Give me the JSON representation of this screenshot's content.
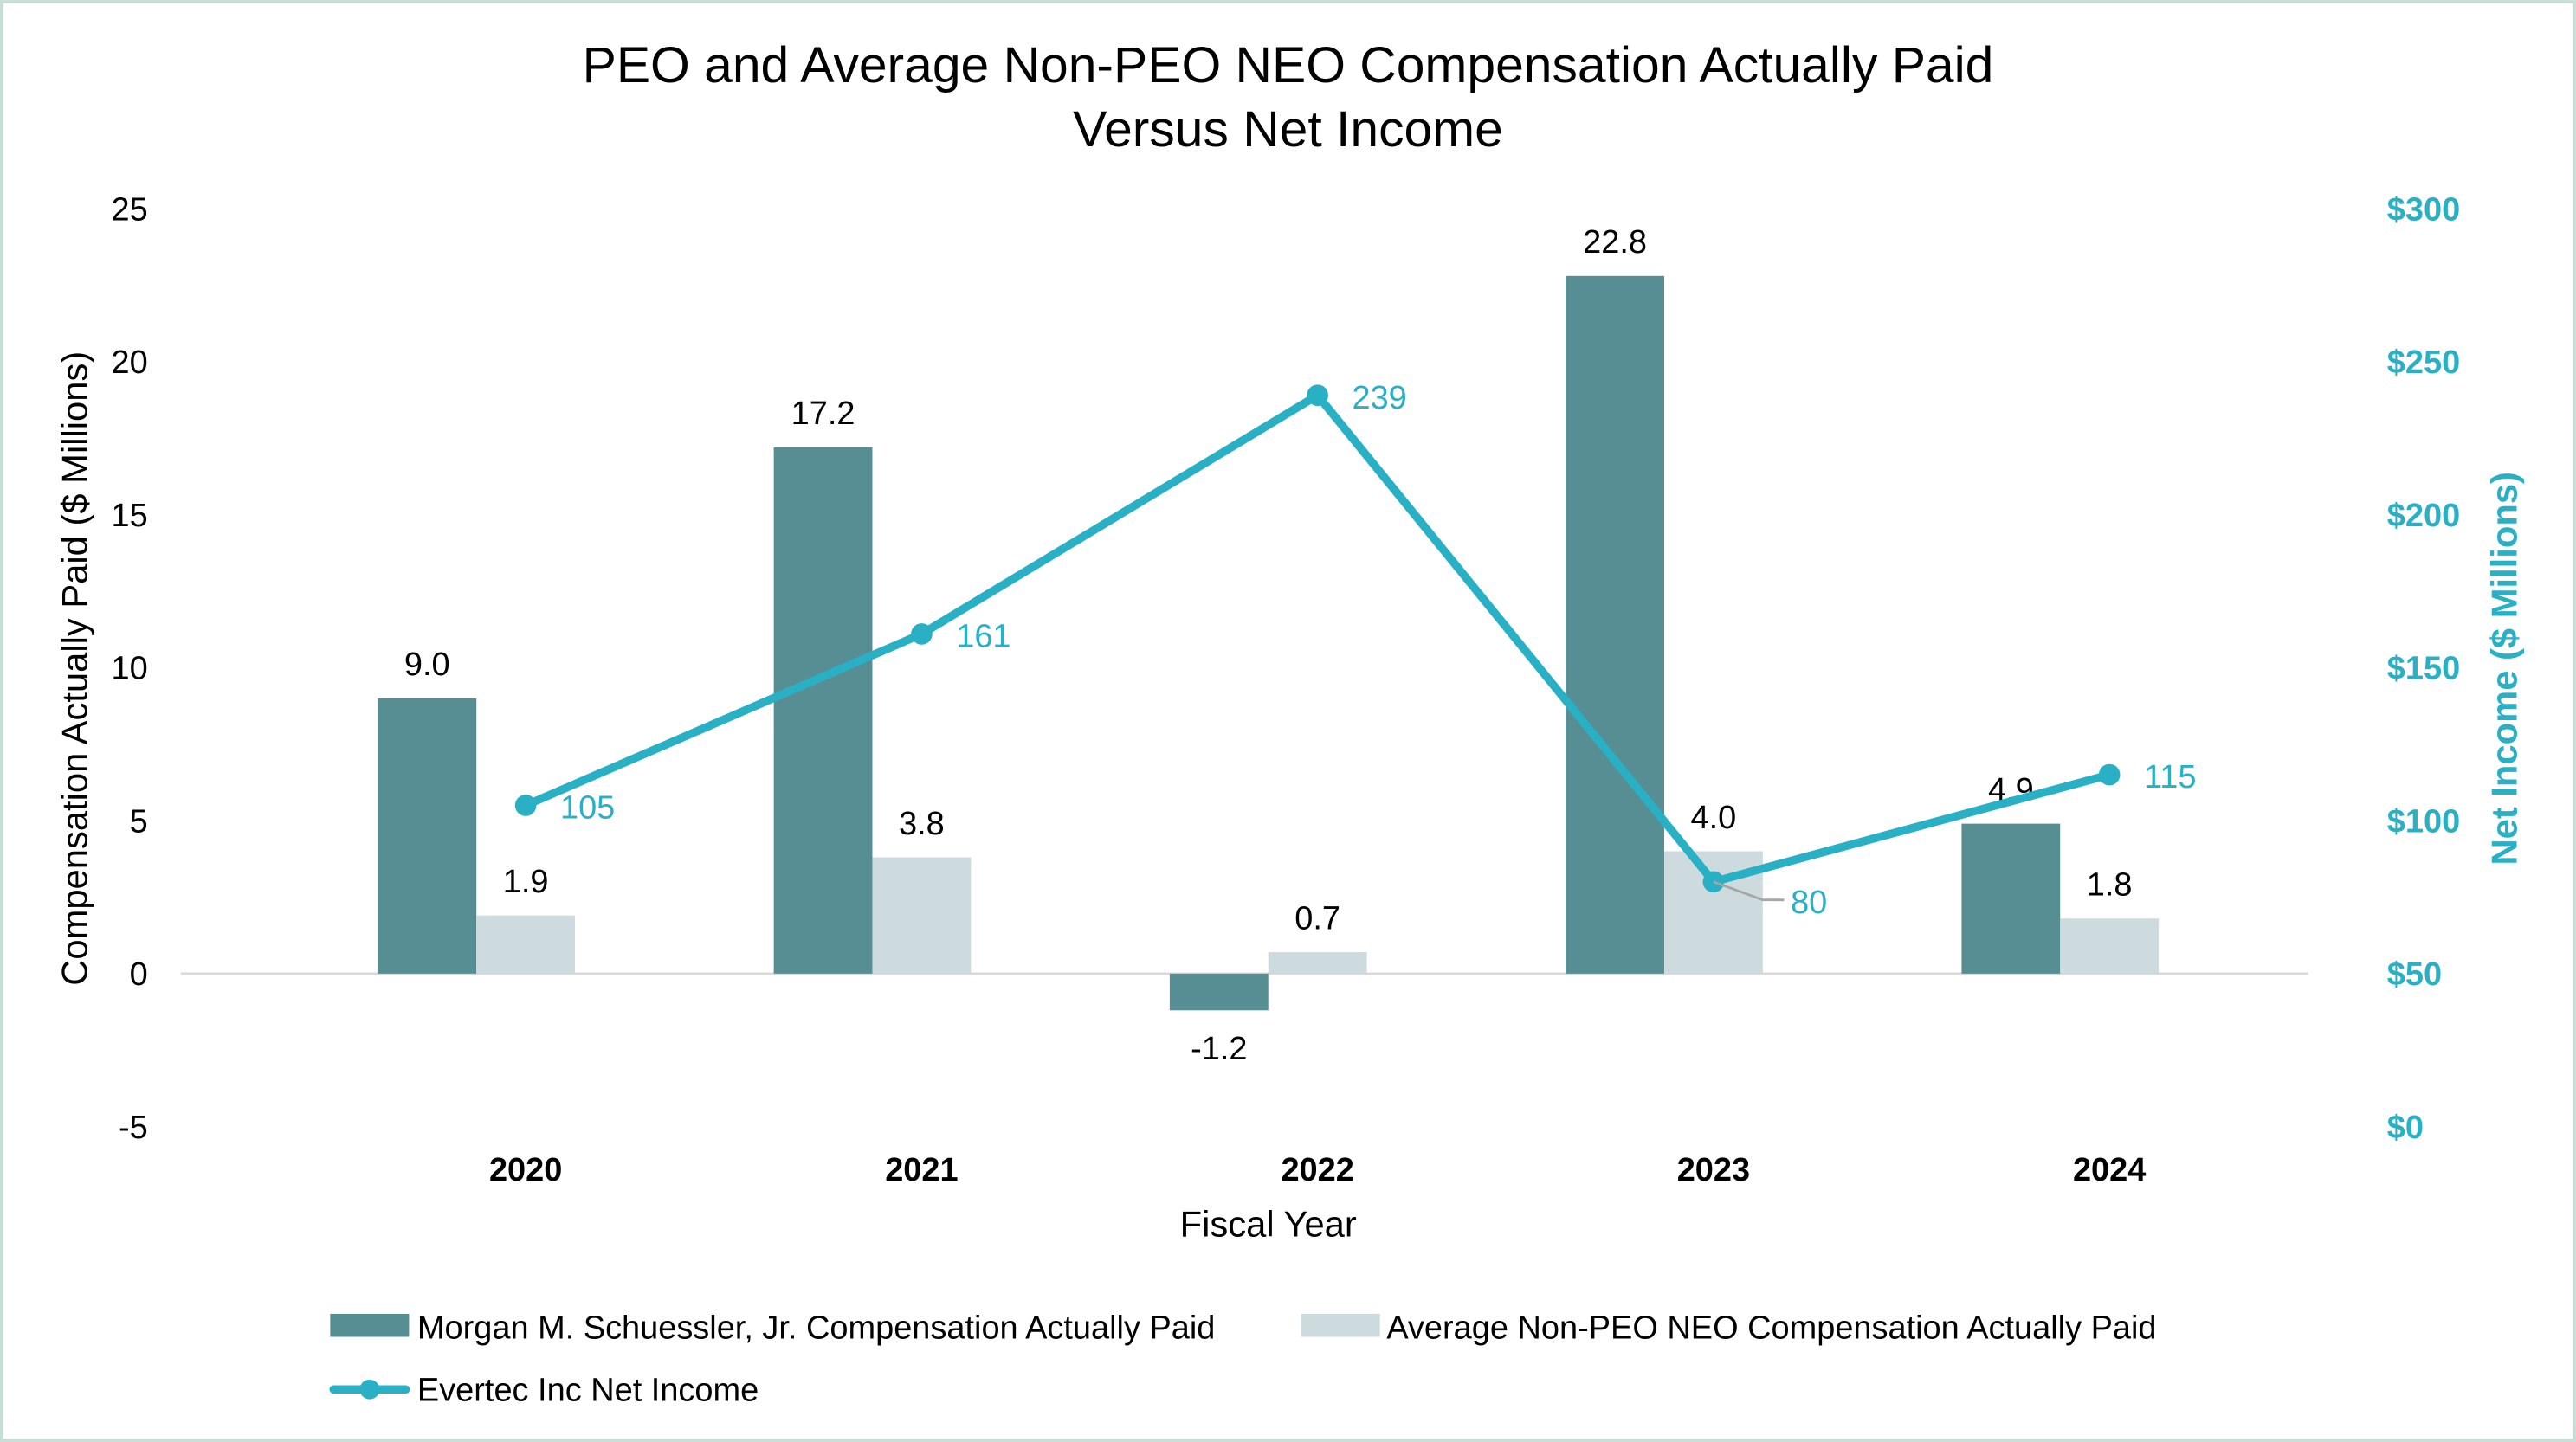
{
  "chart_data": {
    "type": "bar+line",
    "title": "PEO and Average Non-PEO NEO Compensation Actually Paid",
    "subtitle": "Versus Net Income",
    "xlabel": "Fiscal Year",
    "ylabel": "Compensation Actually Paid ($ Millions)",
    "y2label": "Net Income ($ Millions)",
    "categories": [
      "2020",
      "2021",
      "2022",
      "2023",
      "2024"
    ],
    "ylim": [
      -5,
      25
    ],
    "yticks": [
      "-5",
      "0",
      "5",
      "10",
      "15",
      "20",
      "25"
    ],
    "y2lim": [
      0,
      300
    ],
    "y2ticks": [
      "$0",
      "$50",
      "$100",
      "$150",
      "$200",
      "$250",
      "$300"
    ],
    "grid": false,
    "legend_position": "bottom",
    "series": [
      {
        "name": "Morgan M. Schuessler, Jr. Compensation Actually Paid",
        "type": "bar",
        "axis": "left",
        "color": "#568E94",
        "values": [
          9.0,
          17.2,
          -1.2,
          22.8,
          4.9
        ],
        "labels": [
          "9.0",
          "17.2",
          "-1.2",
          "22.8",
          "4.9"
        ]
      },
      {
        "name": "Average Non-PEO NEO Compensation Actually Paid",
        "type": "bar",
        "axis": "left",
        "color": "#CDDADE",
        "values": [
          1.9,
          3.8,
          0.7,
          4.0,
          1.8
        ],
        "labels": [
          "1.9",
          "3.8",
          "0.7",
          "4.0",
          "1.8"
        ]
      },
      {
        "name": "Evertec Inc Net Income",
        "type": "line",
        "axis": "right",
        "color": "#2AB0C4",
        "values": [
          105,
          161,
          239,
          80,
          115
        ],
        "labels": [
          "105",
          "161",
          "239",
          "80",
          "115"
        ]
      }
    ]
  }
}
